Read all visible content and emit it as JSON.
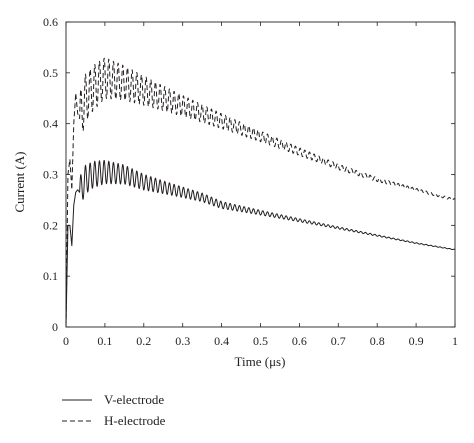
{
  "chart_data": {
    "type": "line",
    "xlabel": "Time (μs)",
    "ylabel": "Current (A)",
    "xlim": [
      0,
      1
    ],
    "ylim": [
      0,
      0.6
    ],
    "xticks": [
      "0",
      "0.1",
      "0.2",
      "0.3",
      "0.4",
      "0.5",
      "0.6",
      "0.7",
      "0.8",
      "0.9",
      "1"
    ],
    "yticks": [
      "0",
      "0.1",
      "0.2",
      "0.3",
      "0.4",
      "0.5",
      "0.6"
    ],
    "grid": false,
    "legend_position": "bottom-left",
    "series": [
      {
        "name": "V-electrode",
        "style": "solid",
        "color": "#231f20",
        "oscillation": {
          "start": 0.035,
          "period": 0.012,
          "amplitude_start": 0.03,
          "amplitude_decay": 0.25
        },
        "envelope": {
          "x": [
            0,
            0.005,
            0.01,
            0.015,
            0.02,
            0.025,
            0.03,
            0.035,
            0.05,
            0.07,
            0.1,
            0.15,
            0.2,
            0.25,
            0.3,
            0.35,
            0.4,
            0.5,
            0.6,
            0.7,
            0.8,
            0.9,
            1.0
          ],
          "y": [
            0,
            0.2,
            0.2,
            0.16,
            0.24,
            0.265,
            0.27,
            0.265,
            0.29,
            0.3,
            0.305,
            0.3,
            0.285,
            0.275,
            0.265,
            0.255,
            0.24,
            0.225,
            0.21,
            0.195,
            0.18,
            0.165,
            0.152
          ]
        }
      },
      {
        "name": "H-electrode",
        "style": "dashed",
        "color": "#231f20",
        "oscillation": {
          "start": 0.035,
          "period": 0.012,
          "amplitude_start": 0.05,
          "amplitude_decay": 0.3
        },
        "envelope": {
          "x": [
            0,
            0.005,
            0.01,
            0.015,
            0.02,
            0.025,
            0.03,
            0.035,
            0.05,
            0.07,
            0.1,
            0.15,
            0.2,
            0.25,
            0.3,
            0.35,
            0.4,
            0.5,
            0.6,
            0.7,
            0.8,
            0.9,
            1.0
          ],
          "y": [
            0,
            0.3,
            0.33,
            0.27,
            0.4,
            0.46,
            0.42,
            0.41,
            0.45,
            0.47,
            0.49,
            0.48,
            0.465,
            0.45,
            0.435,
            0.42,
            0.405,
            0.375,
            0.345,
            0.315,
            0.29,
            0.27,
            0.25
          ]
        }
      }
    ]
  }
}
